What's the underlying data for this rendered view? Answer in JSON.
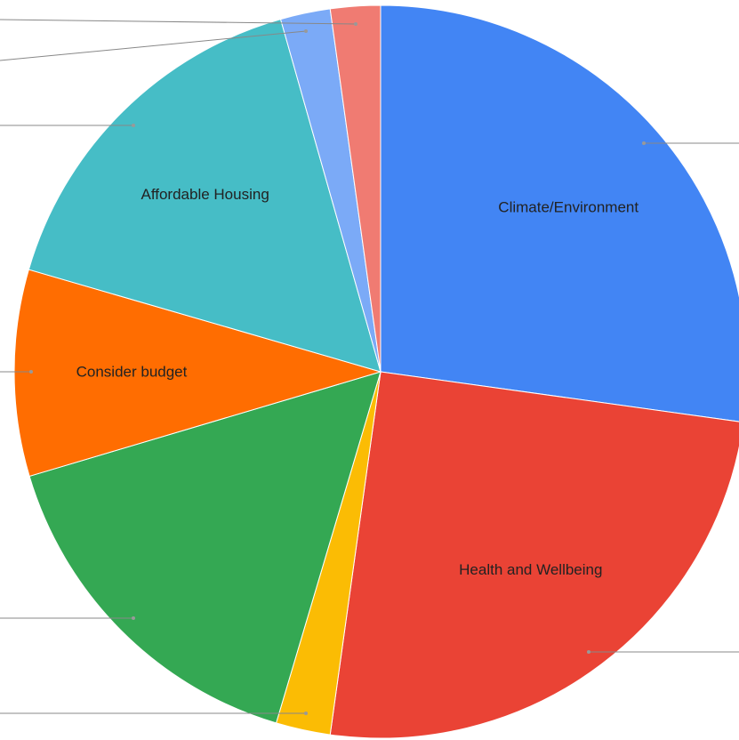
{
  "chart_data": {
    "type": "pie",
    "categories": [
      "Climate/Environment",
      "Health and Wellbeing",
      null,
      null,
      "Consider budget",
      "Affordable Housing",
      null,
      null
    ],
    "values": [
      27.2,
      25,
      2.4,
      15.8,
      9.1,
      16.1,
      2.2,
      2.2
    ],
    "colors": [
      "#4285f4",
      "#ea4335",
      "#fbbc04",
      "#34a853",
      "#ff6d01",
      "#46bdc6",
      "#7baaf7",
      "#f07b72"
    ]
  }
}
